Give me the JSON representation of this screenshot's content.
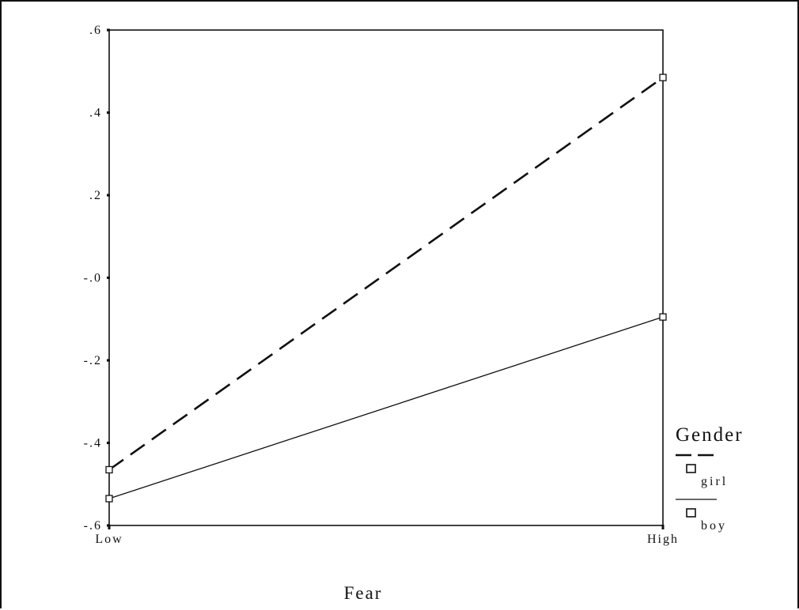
{
  "chart_data": {
    "type": "line",
    "categories": [
      "Low",
      "High"
    ],
    "xlabel": "Fear",
    "ylabel": "",
    "ylim": [
      -0.6,
      0.6
    ],
    "yticks": [
      0.6,
      0.4,
      0.2,
      0.0,
      -0.2,
      -0.4,
      -0.6
    ],
    "ytick_labels": [
      ".6",
      ".4",
      ".2",
      "-.0",
      "-.2",
      "-.4",
      "-.6"
    ],
    "legend_title": "Gender",
    "legend_position": "right",
    "grid": false,
    "series": [
      {
        "name": "girl",
        "values": [
          -0.465,
          0.485
        ],
        "line_style": "dashed",
        "marker": "square"
      },
      {
        "name": "boy",
        "values": [
          -0.535,
          -0.095
        ],
        "line_style": "solid",
        "marker": "square"
      }
    ]
  }
}
